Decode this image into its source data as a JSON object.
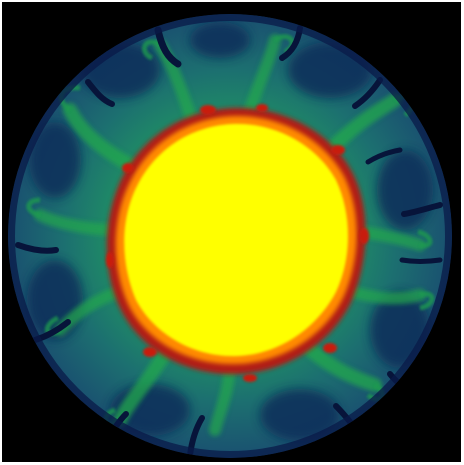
{
  "image": {
    "subject": "mantle-convection-simulation-cross-section",
    "colors": {
      "background": "#000000",
      "frame": "#ffffff",
      "outer_shell": "#1d5a6e",
      "plume_green": "#1fa64a",
      "cold_downwelling": "#0a1a4a",
      "hot_boundary_red": "#c81e10",
      "hot_boundary_orange": "#ff8a00",
      "core_yellow": "#ffff00"
    }
  }
}
